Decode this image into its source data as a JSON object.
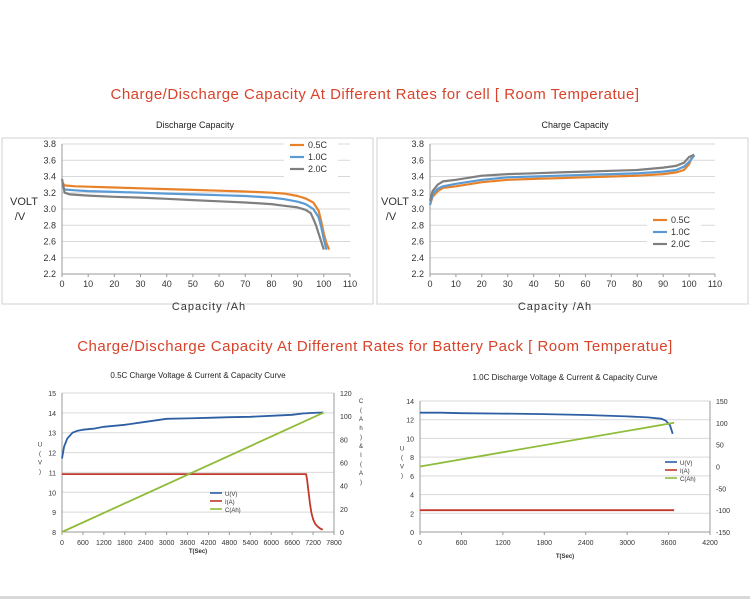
{
  "headings": {
    "cell": "Charge/Discharge Capacity At Different Rates for cell [ Room Temperatue]",
    "pack": "Charge/Discharge Capacity At Different Rates for Battery Pack [ Room Temperatue]"
  },
  "chart_data": [
    {
      "id": "cell-discharge",
      "type": "line",
      "title": "Discharge Capacity",
      "xlabel": "Capacity /Ah",
      "ylabel": "VOLT /V",
      "xlim": [
        0,
        110
      ],
      "ylim": [
        2.2,
        3.8
      ],
      "xticks": [
        "0",
        "10",
        "20",
        "30",
        "40",
        "50",
        "60",
        "70",
        "80",
        "90",
        "100",
        "110"
      ],
      "yticks": [
        "2.2",
        "2.4",
        "2.6",
        "2.8",
        "3.0",
        "3.2",
        "3.4",
        "3.6",
        "3.8"
      ],
      "grid": "horizontal",
      "legend": "top-right",
      "series": [
        {
          "name": "0.5C",
          "color": "#e8822a",
          "x": [
            0,
            1,
            5,
            10,
            20,
            30,
            40,
            50,
            60,
            70,
            80,
            85,
            90,
            93,
            96,
            98,
            99,
            100,
            101,
            102
          ],
          "y": [
            3.33,
            3.29,
            3.28,
            3.275,
            3.265,
            3.255,
            3.245,
            3.235,
            3.225,
            3.215,
            3.2,
            3.19,
            3.16,
            3.13,
            3.08,
            2.98,
            2.85,
            2.7,
            2.58,
            2.5
          ]
        },
        {
          "name": "1.0C",
          "color": "#5b9bd5",
          "x": [
            0,
            1,
            5,
            10,
            20,
            30,
            40,
            50,
            60,
            70,
            80,
            85,
            90,
            93,
            96,
            98,
            99,
            100,
            101
          ],
          "y": [
            3.3,
            3.24,
            3.23,
            3.22,
            3.21,
            3.2,
            3.19,
            3.18,
            3.17,
            3.16,
            3.14,
            3.12,
            3.09,
            3.06,
            3.0,
            2.9,
            2.78,
            2.63,
            2.5
          ]
        },
        {
          "name": "2.0C",
          "color": "#7f7f7f",
          "x": [
            0,
            1,
            3,
            10,
            20,
            30,
            40,
            50,
            60,
            70,
            80,
            85,
            90,
            93,
            95,
            96,
            97,
            98,
            99,
            100
          ],
          "y": [
            3.37,
            3.2,
            3.18,
            3.165,
            3.15,
            3.14,
            3.125,
            3.11,
            3.095,
            3.08,
            3.06,
            3.04,
            3.02,
            2.99,
            2.95,
            2.88,
            2.8,
            2.7,
            2.6,
            2.5
          ]
        }
      ]
    },
    {
      "id": "cell-charge",
      "type": "line",
      "title": "Charge Capacity",
      "xlabel": "Capacity /Ah",
      "ylabel": "VOLT /V",
      "xlim": [
        0,
        110
      ],
      "ylim": [
        2.2,
        3.8
      ],
      "xticks": [
        "0",
        "10",
        "20",
        "30",
        "40",
        "50",
        "60",
        "70",
        "80",
        "90",
        "100",
        "110"
      ],
      "yticks": [
        "2.2",
        "2.4",
        "2.6",
        "2.8",
        "3.0",
        "3.2",
        "3.4",
        "3.6",
        "3.8"
      ],
      "grid": "horizontal",
      "legend": "bottom-right",
      "series": [
        {
          "name": "0.5C",
          "color": "#e8822a",
          "x": [
            0,
            1,
            3,
            5,
            10,
            20,
            30,
            40,
            50,
            60,
            70,
            80,
            90,
            95,
            98,
            100,
            101
          ],
          "y": [
            3.05,
            3.15,
            3.22,
            3.26,
            3.28,
            3.33,
            3.36,
            3.37,
            3.38,
            3.39,
            3.4,
            3.41,
            3.43,
            3.45,
            3.48,
            3.55,
            3.63
          ]
        },
        {
          "name": "1.0C",
          "color": "#5b9bd5",
          "x": [
            0,
            1,
            3,
            5,
            10,
            20,
            30,
            40,
            50,
            60,
            70,
            80,
            90,
            95,
            98,
            100,
            102
          ],
          "y": [
            3.05,
            3.18,
            3.25,
            3.28,
            3.31,
            3.36,
            3.39,
            3.4,
            3.41,
            3.42,
            3.43,
            3.44,
            3.46,
            3.48,
            3.52,
            3.58,
            3.66
          ]
        },
        {
          "name": "2.0C",
          "color": "#7f7f7f",
          "x": [
            0,
            1,
            3,
            5,
            10,
            20,
            30,
            40,
            50,
            60,
            70,
            80,
            90,
            95,
            98,
            100,
            102
          ],
          "y": [
            3.1,
            3.22,
            3.3,
            3.34,
            3.36,
            3.41,
            3.43,
            3.44,
            3.45,
            3.46,
            3.47,
            3.48,
            3.51,
            3.53,
            3.57,
            3.64,
            3.67
          ]
        }
      ]
    },
    {
      "id": "pack-charge",
      "type": "line",
      "title": "0.5C Charge Voltage & Current & Capacity Curve",
      "xlabel": "T(Sec)",
      "ylabel": "U (V)",
      "y2label": "C (Ah) & I (A)",
      "xlim": [
        0,
        7800
      ],
      "ylim": [
        8,
        15
      ],
      "y2lim": [
        0,
        120
      ],
      "xticks": [
        "0",
        "600",
        "1200",
        "1800",
        "2400",
        "3000",
        "3600",
        "4200",
        "4800",
        "5400",
        "6000",
        "6600",
        "7200",
        "7800"
      ],
      "yticks": [
        "8",
        "9",
        "10",
        "11",
        "12",
        "13",
        "14",
        "15"
      ],
      "y2ticks": [
        "0",
        "20",
        "40",
        "60",
        "80",
        "100",
        "120"
      ],
      "grid": "horizontal",
      "legend": "bottom-center",
      "series": [
        {
          "name": "U(V)",
          "color": "#2e5fa3",
          "axis": "left",
          "x": [
            0,
            60,
            150,
            300,
            450,
            600,
            900,
            1200,
            1800,
            2400,
            3000,
            3600,
            4200,
            4800,
            5400,
            6000,
            6600,
            6900,
            7200,
            7500
          ],
          "y": [
            11.7,
            12.3,
            12.7,
            13.0,
            13.1,
            13.15,
            13.2,
            13.3,
            13.4,
            13.55,
            13.7,
            13.72,
            13.75,
            13.78,
            13.8,
            13.85,
            13.9,
            13.97,
            14.0,
            14.02
          ]
        },
        {
          "name": "I(A)",
          "color": "#c0392b",
          "axis": "right",
          "x": [
            0,
            6000,
            7000,
            7030,
            7070,
            7110,
            7150,
            7200,
            7260,
            7320,
            7400,
            7480
          ],
          "y": [
            50,
            50,
            50,
            45,
            35,
            25,
            17,
            11,
            7,
            5,
            3,
            2
          ]
        },
        {
          "name": "C(Ah)",
          "color": "#8fbc3a",
          "axis": "right",
          "x": [
            0,
            7500
          ],
          "y": [
            0,
            103
          ]
        }
      ]
    },
    {
      "id": "pack-discharge",
      "type": "line",
      "title": "1.0C Discharge Voltage & Current & Capacity Curve",
      "xlabel": "T(Sec)",
      "ylabel": "U (V)",
      "xlim": [
        0,
        4200
      ],
      "ylim": [
        0,
        14
      ],
      "y2lim": [
        -150,
        150
      ],
      "xticks": [
        "0",
        "600",
        "1200",
        "1800",
        "2400",
        "3000",
        "3600",
        "4200"
      ],
      "yticks": [
        "0",
        "2",
        "4",
        "6",
        "8",
        "10",
        "12",
        "14"
      ],
      "y2ticks": [
        "-150",
        "-100",
        "-50",
        "0",
        "50",
        "100",
        "150"
      ],
      "grid": "horizontal",
      "legend": "middle-right",
      "series": [
        {
          "name": "U(V)",
          "color": "#2e5fa3",
          "axis": "left",
          "x": [
            0,
            300,
            600,
            1200,
            1800,
            2400,
            3000,
            3300,
            3500,
            3560,
            3620,
            3660
          ],
          "y": [
            12.75,
            12.75,
            12.7,
            12.65,
            12.6,
            12.5,
            12.35,
            12.25,
            12.1,
            11.9,
            11.4,
            10.5
          ]
        },
        {
          "name": "I(A)",
          "color": "#c0392b",
          "axis": "right",
          "x": [
            0,
            3680
          ],
          "y": [
            -100,
            -100
          ]
        },
        {
          "name": "C(Ah)",
          "color": "#8fbc3a",
          "axis": "right",
          "x": [
            0,
            3680
          ],
          "y": [
            0,
            100
          ]
        }
      ]
    }
  ]
}
